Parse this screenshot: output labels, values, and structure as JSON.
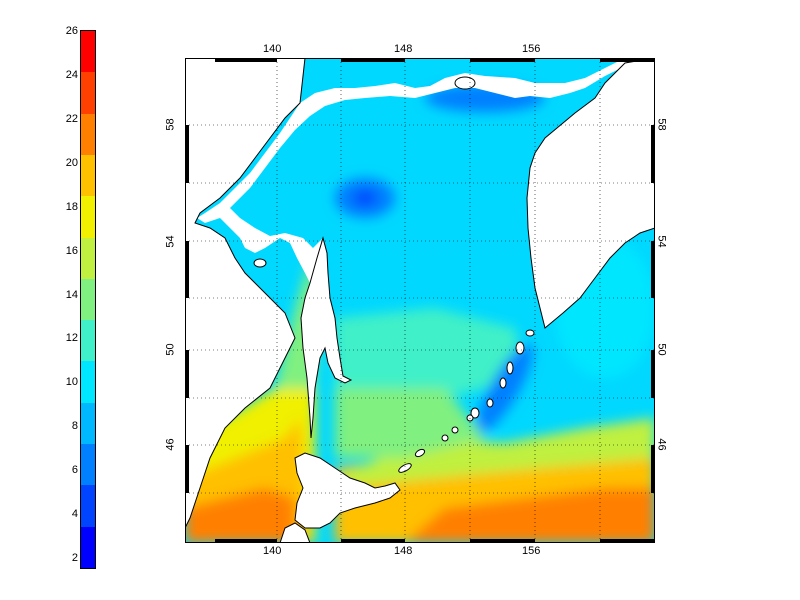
{
  "colorbar": {
    "labels": [
      "26",
      "24",
      "22",
      "20",
      "18",
      "16",
      "14",
      "12",
      "10",
      "8",
      "6",
      "4",
      "2"
    ],
    "colors": [
      "#0000ff",
      "#0044ff",
      "#0080ff",
      "#00b8ff",
      "#00e6ff",
      "#40f0c8",
      "#80f080",
      "#c0f040",
      "#f0f000",
      "#ffc000",
      "#ff8000",
      "#ff4000",
      "#ff0000"
    ]
  },
  "map": {
    "lon_labels_top": [
      "140",
      "148",
      "156"
    ],
    "lon_labels_bottom": [
      "140",
      "148",
      "156"
    ],
    "lat_labels_left": [
      "58",
      "54",
      "50",
      "46"
    ],
    "lat_labels_right": [
      "58",
      "54",
      "50",
      "46"
    ],
    "land_color": "#ffffff",
    "coast_color": "#000000",
    "grid": "dotted"
  }
}
